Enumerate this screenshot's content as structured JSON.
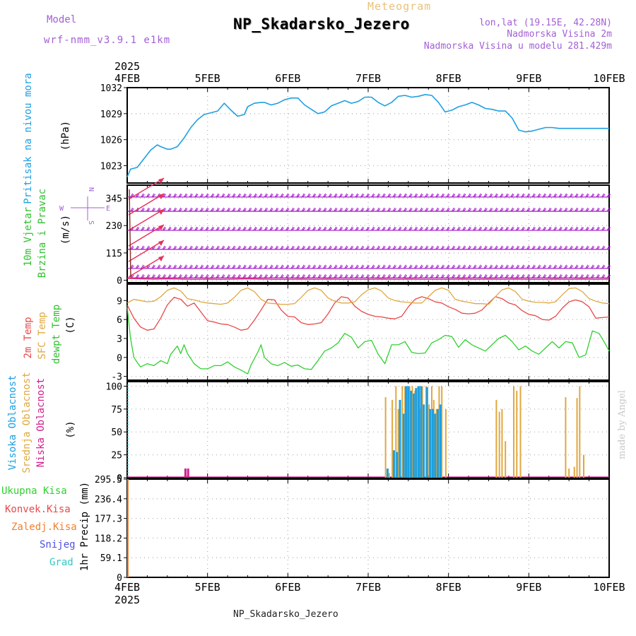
{
  "header": {
    "title": "NP_Skadarsko_Jezero",
    "subtitle": "Meteogram",
    "model_label": "Model",
    "model_name": "wrf-nmm_v3.9.1 e1km",
    "location": "lon,lat (19.15E, 42.28N)",
    "elevation": "Nadmorska Visina 2m",
    "model_elevation": "Nadmorska Visina u modelu 281.429m"
  },
  "footer": "NP_Skadarsko_Jezero",
  "credit": "made by Angel",
  "colors": {
    "pressure": "#1e9fe0",
    "wind": "#a012c8",
    "wind_speed": "#e8305a",
    "temp2m": "#e84848",
    "sfc_temp": "#e0a840",
    "dewpt": "#30d030",
    "cloud_high": "#1e9fe0",
    "cloud_mid": "#e0a840",
    "cloud_low": "#d21e8c",
    "precip_total": "#30d030",
    "precip_conv": "#e84848",
    "precip_frozen": "#f08030",
    "precip_snow": "#5050e0",
    "precip_hail": "#30c8c8"
  },
  "chart_data": [
    {
      "type": "line",
      "panel": "pressure",
      "x_top_year": "2025",
      "x_ticks": [
        "4FEB",
        "5FEB",
        "6FEB",
        "7FEB",
        "8FEB",
        "9FEB",
        "10FEB"
      ],
      "xlim": [
        0,
        144
      ],
      "ylim": [
        1021,
        1032
      ],
      "yticks": [
        "1023",
        "1026",
        "1029",
        "1032"
      ],
      "ylabel_lines": [
        "Pritisak na nivou mora",
        "(hPa)"
      ],
      "x": [
        0,
        1,
        3,
        5,
        7,
        9,
        10,
        12,
        13,
        15,
        17,
        19,
        21,
        23,
        25,
        27,
        29,
        31,
        33,
        35,
        36,
        38,
        40,
        41,
        43,
        45,
        47,
        49,
        51,
        53,
        55,
        57,
        59,
        61,
        63,
        65,
        67,
        69,
        71,
        73,
        75,
        77,
        79,
        81,
        83,
        85,
        87,
        89,
        91,
        93,
        95,
        97,
        99,
        101,
        103,
        105,
        107,
        109,
        111,
        113,
        115,
        117,
        119,
        121,
        123,
        125,
        127,
        129,
        131,
        133,
        135,
        137,
        139,
        141,
        143,
        144
      ],
      "values": [
        1021.7,
        1022.6,
        1022.8,
        1023.8,
        1024.8,
        1025.4,
        1025.2,
        1024.9,
        1024.9,
        1025.2,
        1026.2,
        1027.4,
        1028.3,
        1028.9,
        1029.1,
        1029.3,
        1030.2,
        1029.4,
        1028.7,
        1028.9,
        1029.8,
        1030.2,
        1030.3,
        1030.3,
        1030.0,
        1030.2,
        1030.6,
        1030.8,
        1030.8,
        1030.0,
        1029.5,
        1029.0,
        1029.2,
        1029.9,
        1030.2,
        1030.5,
        1030.2,
        1030.4,
        1030.9,
        1030.9,
        1030.3,
        1029.9,
        1030.3,
        1031.0,
        1031.1,
        1030.9,
        1031.0,
        1031.2,
        1031.1,
        1030.3,
        1029.2,
        1029.4,
        1029.8,
        1030.0,
        1030.3,
        1030.0,
        1029.6,
        1029.5,
        1029.3,
        1029.3,
        1028.5,
        1027.1,
        1026.9,
        1027.0,
        1027.2,
        1027.4,
        1027.4,
        1027.3,
        1027.3,
        1027.3,
        1027.3,
        1027.3,
        1027.3,
        1027.3,
        1027.3,
        1027.3
      ]
    },
    {
      "type": "line",
      "panel": "wind",
      "xlim": [
        0,
        144
      ],
      "ylim": [
        -10,
        400
      ],
      "yticks": [
        "0",
        "115",
        "230",
        "345"
      ],
      "ylabel_lines": [
        "10m Vjetar",
        "Brzina i Pravac",
        "(m/s)"
      ],
      "direction_legend": [
        "N",
        "W",
        "E",
        "S"
      ],
      "barb_levels": [
        50,
        130,
        210,
        290,
        350
      ],
      "speed_x": [
        0,
        4,
        8,
        12,
        16,
        20,
        24,
        28,
        32,
        36,
        40,
        44,
        48,
        52,
        56,
        60,
        64,
        68,
        72,
        76,
        80,
        84,
        88,
        92,
        96,
        100,
        104,
        108,
        112,
        116,
        120,
        124,
        128,
        132,
        136,
        140,
        144
      ],
      "speed_values": [
        8,
        6,
        5,
        6,
        5,
        4,
        5,
        4,
        5,
        6,
        5,
        4,
        4,
        5,
        4,
        5,
        4,
        4,
        4,
        5,
        4,
        5,
        4,
        4,
        4,
        5,
        4,
        5,
        4,
        5,
        4,
        4,
        5,
        4,
        5,
        4,
        5
      ]
    },
    {
      "type": "line",
      "panel": "temperature",
      "xlim": [
        0,
        144
      ],
      "ylim": [
        -3.6,
        11.6
      ],
      "yticks": [
        "-3",
        "0",
        "3",
        "6",
        "9"
      ],
      "ylabel_lines": [
        "2m Temp",
        "SFC Temp",
        "dewpt Temp",
        "(C)"
      ],
      "series": [
        {
          "name": "2m Temp",
          "x": [
            0,
            2,
            4,
            6,
            8,
            10,
            12,
            14,
            16,
            18,
            20,
            22,
            24,
            26,
            28,
            30,
            32,
            34,
            36,
            38,
            40,
            42,
            44,
            46,
            48,
            50,
            52,
            54,
            56,
            58,
            60,
            62,
            64,
            66,
            68,
            70,
            72,
            74,
            76,
            78,
            80,
            82,
            84,
            86,
            88,
            90,
            92,
            94,
            96,
            98,
            100,
            102,
            104,
            106,
            108,
            110,
            112,
            114,
            116,
            118,
            120,
            122,
            124,
            126,
            128,
            130,
            132,
            134,
            136,
            138,
            140,
            142,
            144
          ],
          "values": [
            8.3,
            6.2,
            4.8,
            4.3,
            4.5,
            6.2,
            8.3,
            9.5,
            9.2,
            8.1,
            8.6,
            7.2,
            5.8,
            5.6,
            5.3,
            5.2,
            4.8,
            4.3,
            4.5,
            5.9,
            7.5,
            9.2,
            9.1,
            7.5,
            6.5,
            6.4,
            5.5,
            5.2,
            5.3,
            5.5,
            6.9,
            8.6,
            9.6,
            9.4,
            8.1,
            7.3,
            6.8,
            6.5,
            6.4,
            6.2,
            6.1,
            6.5,
            8.0,
            9.2,
            9.6,
            9.3,
            8.8,
            8.6,
            8.0,
            7.6,
            7.0,
            6.9,
            7.0,
            7.5,
            8.6,
            9.6,
            9.3,
            8.6,
            8.3,
            7.4,
            6.8,
            6.6,
            6.0,
            5.9,
            6.5,
            7.8,
            8.8,
            9.1,
            8.8,
            8.0,
            6.2,
            6.3,
            6.4
          ]
        },
        {
          "name": "SFC Temp",
          "x": [
            0,
            2,
            4,
            6,
            8,
            10,
            12,
            14,
            16,
            18,
            20,
            22,
            24,
            26,
            28,
            30,
            32,
            34,
            36,
            38,
            40,
            42,
            44,
            46,
            48,
            50,
            52,
            54,
            56,
            58,
            60,
            62,
            64,
            66,
            68,
            70,
            72,
            74,
            76,
            78,
            80,
            82,
            84,
            86,
            88,
            90,
            92,
            94,
            96,
            98,
            100,
            102,
            104,
            106,
            108,
            110,
            112,
            114,
            116,
            118,
            120,
            122,
            124,
            126,
            128,
            130,
            132,
            134,
            136,
            138,
            140,
            142,
            144
          ],
          "values": [
            8.6,
            9.2,
            9.0,
            8.8,
            8.9,
            9.6,
            10.6,
            11.0,
            10.5,
            9.3,
            9.1,
            8.8,
            8.6,
            8.5,
            8.4,
            8.6,
            9.5,
            10.6,
            11.0,
            10.4,
            9.2,
            8.6,
            8.5,
            8.4,
            8.4,
            8.5,
            9.5,
            10.6,
            11.0,
            10.6,
            9.4,
            8.9,
            8.6,
            8.6,
            8.8,
            9.9,
            10.7,
            11.0,
            10.5,
            9.4,
            9.0,
            8.8,
            8.7,
            8.6,
            8.6,
            9.6,
            10.6,
            11.0,
            10.6,
            9.2,
            8.9,
            8.7,
            8.5,
            8.5,
            8.4,
            9.6,
            10.7,
            11.0,
            10.4,
            9.2,
            8.9,
            8.7,
            8.7,
            8.6,
            8.8,
            9.9,
            10.9,
            11.0,
            10.4,
            9.3,
            8.9,
            8.6,
            8.5
          ]
        },
        {
          "name": "dewpt Temp",
          "x": [
            0,
            1,
            2,
            3,
            4,
            6,
            8,
            10,
            12,
            13,
            15,
            16,
            17,
            18,
            20,
            22,
            24,
            26,
            28,
            30,
            32,
            34,
            36,
            37,
            39,
            40,
            41,
            43,
            45,
            47,
            49,
            51,
            53,
            55,
            57,
            59,
            61,
            63,
            65,
            67,
            69,
            71,
            73,
            75,
            77,
            79,
            81,
            83,
            85,
            87,
            89,
            91,
            93,
            95,
            97,
            99,
            101,
            103,
            105,
            107,
            109,
            111,
            113,
            115,
            117,
            119,
            121,
            123,
            125,
            127,
            129,
            131,
            133,
            135,
            137,
            139,
            141,
            143,
            144
          ],
          "values": [
            8.0,
            3.0,
            0.0,
            -0.8,
            -1.5,
            -1.0,
            -1.3,
            -0.5,
            -1.0,
            0.5,
            1.8,
            0.6,
            2.0,
            0.6,
            -1.0,
            -1.8,
            -1.8,
            -1.3,
            -1.3,
            -0.7,
            -1.5,
            -2.0,
            -2.6,
            -1.2,
            0.8,
            2.0,
            0.0,
            -1.0,
            -1.3,
            -0.8,
            -1.4,
            -1.2,
            -1.8,
            -1.9,
            -0.5,
            1.0,
            1.5,
            2.3,
            3.8,
            3.2,
            1.5,
            2.5,
            2.7,
            0.5,
            -1.0,
            2.0,
            2.0,
            2.5,
            0.8,
            0.6,
            0.7,
            2.3,
            2.8,
            3.5,
            3.3,
            1.6,
            2.8,
            2.0,
            1.5,
            1.0,
            2.0,
            3.0,
            3.5,
            2.5,
            1.2,
            1.8,
            1.0,
            0.5,
            1.5,
            2.5,
            1.5,
            2.5,
            2.3,
            0.0,
            0.4,
            4.2,
            3.8,
            2.0,
            1.0
          ]
        }
      ]
    },
    {
      "type": "bar",
      "panel": "clouds",
      "xlim": [
        0,
        144
      ],
      "ylim": [
        0,
        105
      ],
      "yticks": [
        "0",
        "25",
        "50",
        "75",
        "100"
      ],
      "ylabel_lines": [
        "Visoka Oblacnost",
        "Srednja Oblacnost",
        "Niska Oblacnost",
        "(%)"
      ],
      "series": [
        {
          "name": "Niska Oblacnost",
          "x": [
            17.4,
            18.2
          ],
          "values": [
            10,
            10
          ]
        },
        {
          "name": "Srednja Oblacnost",
          "x": [
            77.2,
            78.3,
            79.2,
            80.3,
            81.0,
            82.2,
            83.0,
            83.6,
            84.4,
            85.2,
            86.0,
            86.8,
            87.4,
            88.2,
            89.3,
            90.2,
            91.0,
            91.6,
            92.4,
            93.2,
            94.0,
            95.2,
            110.3,
            111.2,
            112.0,
            113.0,
            115.5,
            116.4,
            117.5,
            131.0,
            132.0,
            133.6,
            134.4,
            135.2,
            136.4
          ],
          "values": [
            88,
            5,
            85,
            100,
            75,
            100,
            100,
            100,
            100,
            100,
            95,
            100,
            75,
            100,
            100,
            80,
            100,
            85,
            75,
            100,
            100,
            75,
            85,
            72,
            75,
            40,
            100,
            95,
            100,
            88,
            10,
            12,
            87,
            100,
            25
          ]
        },
        {
          "name": "Visoka Oblacnost",
          "x": [
            77.8,
            79.7,
            80.6,
            81.5,
            82.6,
            83.3,
            84.0,
            84.8,
            85.6,
            86.3,
            87.1,
            87.8,
            88.6,
            89.6,
            90.5,
            91.3,
            92.0,
            92.8,
            93.6
          ],
          "values": [
            10,
            30,
            28,
            85,
            70,
            100,
            100,
            95,
            92,
            98,
            100,
            100,
            80,
            99,
            75,
            75,
            70,
            75,
            80
          ]
        }
      ]
    },
    {
      "type": "bar",
      "panel": "precipitation",
      "xlim": [
        0,
        144
      ],
      "ylim": [
        0,
        295.5
      ],
      "yticks": [
        "0",
        "59.1",
        "118.2",
        "177.3",
        "236.4",
        "295.5"
      ],
      "ylabel_lines": [
        "1hr Precip (mm)"
      ],
      "legend": [
        "Ukupna Kisa",
        "Konvek.Kisa",
        "Zaledj.Kisa",
        "Snijeg",
        "Grad"
      ],
      "x_bottom_year": "2025",
      "x_ticks": [
        "4FEB",
        "5FEB",
        "6FEB",
        "7FEB",
        "8FEB",
        "9FEB",
        "10FEB"
      ],
      "x": [
        0.2
      ],
      "values": [
        295.5
      ]
    }
  ]
}
